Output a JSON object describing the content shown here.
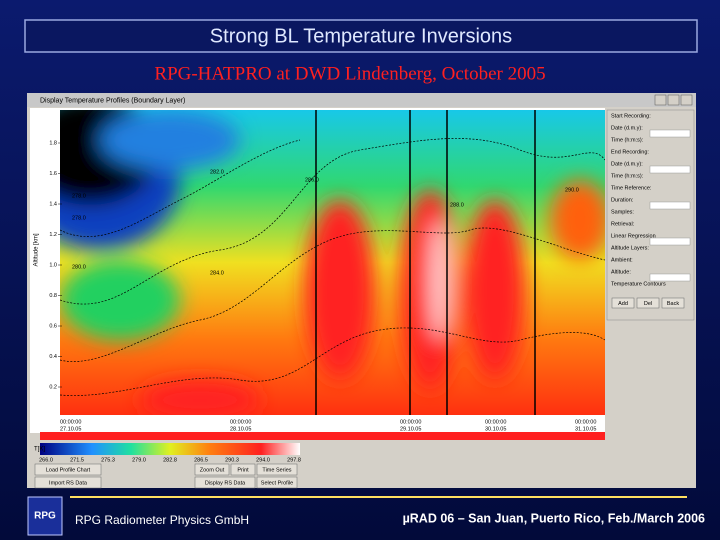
{
  "header": {
    "title": "Strong BL Temperature Inversions",
    "subtitle": "RPG-HATPRO at DWD Lindenberg, October 2005"
  },
  "window": {
    "title": "Display Temperature Profiles (Boundary Layer)",
    "y_axis_label": "Altitude [km]",
    "y_ticks": [
      "1.8",
      "1.6",
      "1.4",
      "1.2",
      "1.0",
      "0.8",
      "0.6",
      "0.4",
      "0.2"
    ],
    "contour_labels": [
      "276.0",
      "278.0",
      "278.0",
      "280.0",
      "282.0",
      "284.0",
      "286.0",
      "288.0",
      "290.0"
    ],
    "x_labels": [
      "00:00:00",
      "27.10.05",
      "00:00:00",
      "28.10.05",
      "00:00:00",
      "29.10.05",
      "00:00:00",
      "30.10.05",
      "00:00:00",
      "31.10.05"
    ],
    "colorbar_label": "T[K]",
    "colorbar_ticks": [
      "266.0",
      "271.5",
      "275.3",
      "279.0",
      "282.8",
      "286.5",
      "290.3",
      "294.0",
      "297.8"
    ],
    "side_panel": [
      "Start Recording:",
      "Date (d.m.y):",
      "Time (h:m:s):",
      "End Recording:",
      "Date (d.m.y):",
      "Time (h:m:s):",
      "Time Reference:",
      "Duration:",
      "Samples:",
      "Retrieval:",
      "Linear Regression",
      "Altitude Layers:",
      "Ambient:",
      "Altitude:",
      "Temperature Contours"
    ],
    "contour_buttons": [
      "Add",
      "Del",
      "Back"
    ],
    "buttons": [
      "Load Profile Chart",
      "Zoom Out",
      "Print",
      "Time Series",
      "Import RS Data",
      "Display RS Data",
      "Select Profile"
    ]
  },
  "footer": {
    "logo": "RPG",
    "company": "RPG Radiometer Physics GmbH",
    "conference": "µRAD 06 – San Juan, Puerto Rico, Feb./March 2006"
  }
}
